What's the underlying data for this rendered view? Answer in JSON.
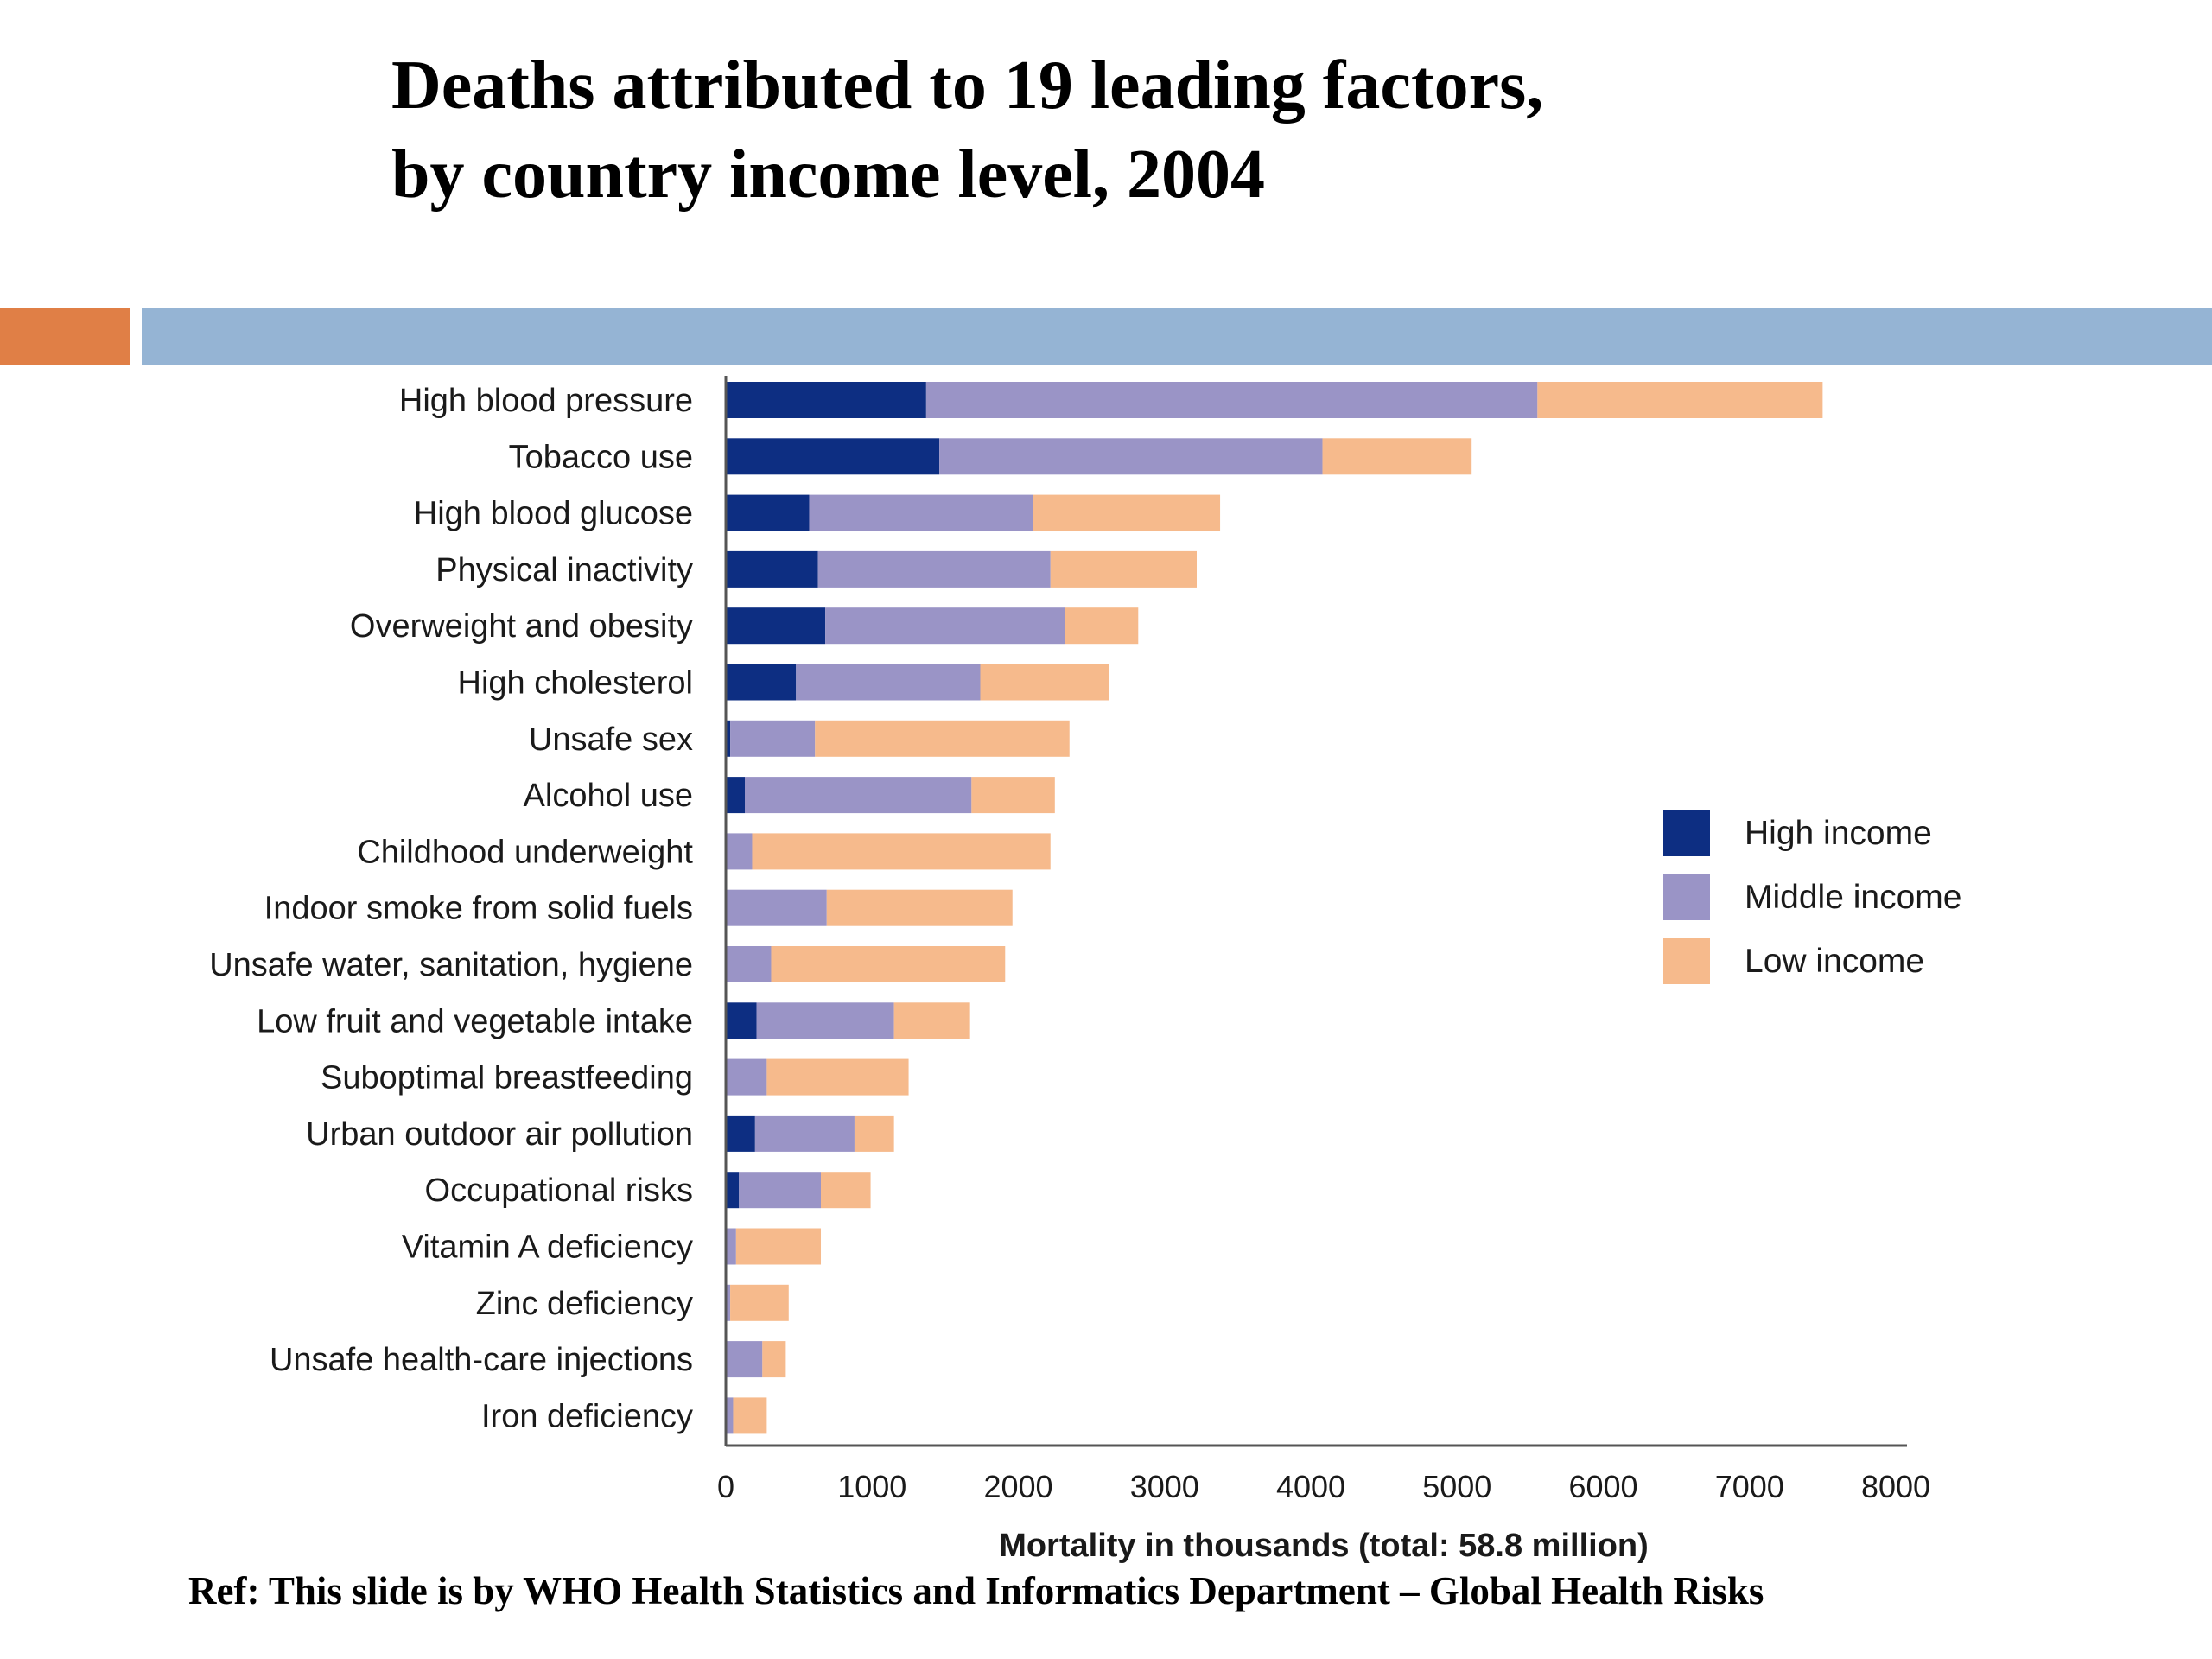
{
  "slide": {
    "title_line1": "Deaths attributed to 19 leading factors,",
    "title_line2": "by country income level, 2004",
    "ref": "Ref: This slide is by WHO Health Statistics and Informatics Department – Global Health Risks"
  },
  "colors": {
    "band_accent": "#E07F46",
    "band_main": "#95B4D4",
    "axis": "#555555"
  },
  "chart_data": {
    "type": "bar",
    "orientation": "horizontal",
    "stacked": true,
    "title": "Deaths attributed to 19 leading factors, by country income level, 2004",
    "xlabel": "Mortality in thousands (total: 58.8 million)",
    "ylabel": "",
    "xlim": [
      0,
      8000
    ],
    "xticks": [
      "0",
      "1000",
      "2000",
      "3000",
      "4000",
      "5000",
      "6000",
      "7000",
      "8000"
    ],
    "tick_values": [
      0,
      1000,
      2000,
      3000,
      4000,
      5000,
      6000,
      7000,
      8000
    ],
    "legend_position": "right",
    "categories": [
      "High blood pressure",
      "Tobacco use",
      "High blood glucose",
      "Physical inactivity",
      "Overweight and obesity",
      "High cholesterol",
      "Unsafe sex",
      "Alcohol use",
      "Childhood underweight",
      "Indoor smoke from solid fuels",
      "Unsafe water, sanitation, hygiene",
      "Low fruit and vegetable intake",
      "Suboptimal breastfeeding",
      "Urban outdoor air pollution",
      "Occupational risks",
      "Vitamin A deficiency",
      "Zinc deficiency",
      "Unsafe health-care injections",
      "Iron deficiency"
    ],
    "series": [
      {
        "name": "High income",
        "color": "#0D2E82",
        "values": [
          1370,
          1460,
          570,
          630,
          680,
          480,
          30,
          130,
          0,
          0,
          0,
          210,
          0,
          200,
          90,
          0,
          0,
          0,
          0
        ]
      },
      {
        "name": "Middle income",
        "color": "#9A94C6",
        "values": [
          4180,
          2620,
          1530,
          1590,
          1640,
          1260,
          580,
          1550,
          180,
          690,
          310,
          940,
          280,
          680,
          560,
          70,
          30,
          250,
          50
        ]
      },
      {
        "name": "Low income",
        "color": "#F6BA8C",
        "values": [
          1950,
          1020,
          1280,
          1000,
          500,
          880,
          1740,
          570,
          2040,
          1270,
          1600,
          520,
          970,
          270,
          340,
          580,
          400,
          160,
          230
        ]
      }
    ]
  }
}
